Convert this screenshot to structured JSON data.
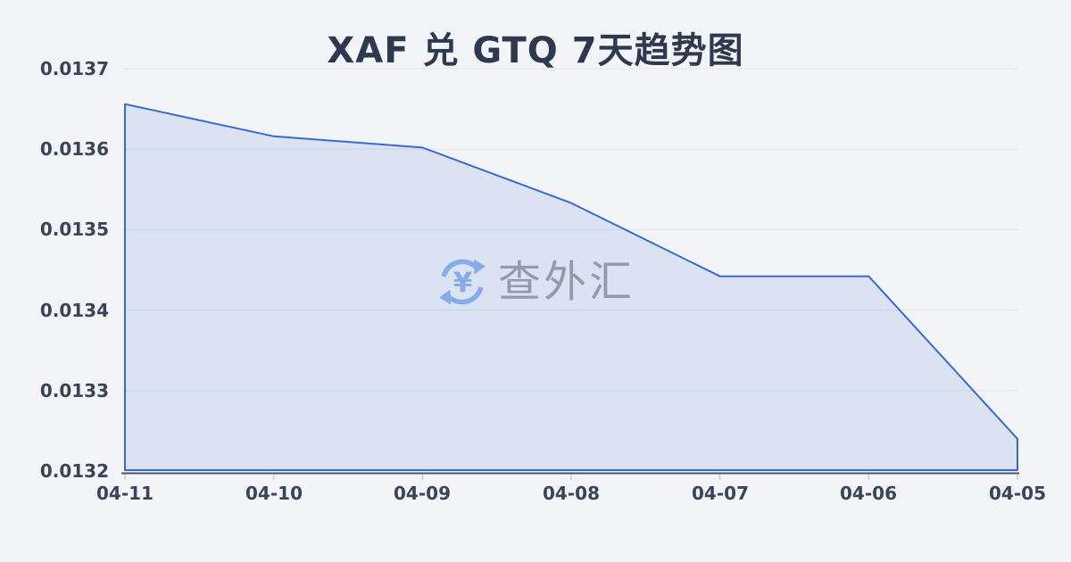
{
  "header": {
    "title": "XAF 兑 GTQ 7天趋势图"
  },
  "watermark": {
    "icon": "currency-exchange-refresh-icon",
    "symbol": "¥",
    "text": "查外汇"
  },
  "colors": {
    "background": "#f3f4f7",
    "title": "#2e3950",
    "tick_label": "#39435a",
    "grid": "#e4e7ed",
    "axis": "#48576f",
    "tick_mark": "#ccd1da",
    "line": "#3a69d4",
    "area_fill": "rgba(58,105,212,0.13)",
    "watermark_blue": "#86ade9",
    "watermark_gray": "#939aab"
  },
  "chart_data": {
    "type": "area",
    "title": "XAF 兑 GTQ 7天趋势图",
    "categories": [
      "04-11",
      "04-10",
      "04-09",
      "04-08",
      "04-07",
      "04-06",
      "04-05"
    ],
    "values": [
      0.013656,
      0.013616,
      0.013602,
      0.013533,
      0.013442,
      0.013442,
      0.01324
    ],
    "xlabel": "",
    "ylabel": "",
    "ylim": [
      0.0132,
      0.0137
    ],
    "ytick_labels": [
      "0.0137",
      "0.0136",
      "0.0135",
      "0.0134",
      "0.0133",
      "0.0132"
    ],
    "grid": true,
    "legend": false
  }
}
